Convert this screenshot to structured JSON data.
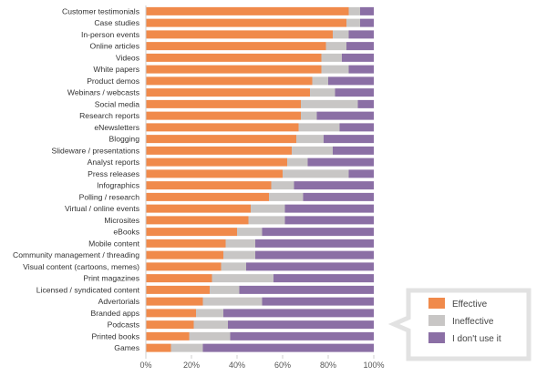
{
  "chart_data": {
    "type": "bar",
    "orientation": "horizontal",
    "stacked": true,
    "categories": [
      "Customer testimonials",
      "Case studies",
      "In-person events",
      "Online articles",
      "Videos",
      "White papers",
      "Product demos",
      "Webinars / webcasts",
      "Social media",
      "Research reports",
      "eNewsletters",
      "Blogging",
      "Slideware / presentations",
      "Analyst reports",
      "Press releases",
      "Infographics",
      "Polling / research",
      "Virtual / online events",
      "Microsites",
      "eBooks",
      "Mobile content",
      "Community management / threading",
      "Visual content (cartoons, memes)",
      "Print magazines",
      "Licensed / syndicated content",
      "Advertorials",
      "Branded apps",
      "Podcasts",
      "Printed books",
      "Games"
    ],
    "series": [
      {
        "name": "Effective",
        "color": "#f08a4b",
        "values": [
          89,
          88,
          82,
          79,
          77,
          77,
          73,
          72,
          68,
          68,
          67,
          66,
          64,
          62,
          60,
          55,
          54,
          46,
          45,
          40,
          35,
          34,
          33,
          29,
          28,
          25,
          22,
          21,
          19,
          11
        ]
      },
      {
        "name": "Ineffective",
        "color": "#c8c6c5",
        "values": [
          5,
          6,
          7,
          9,
          9,
          12,
          7,
          11,
          25,
          7,
          18,
          12,
          18,
          9,
          29,
          10,
          15,
          15,
          16,
          11,
          13,
          14,
          11,
          27,
          13,
          26,
          12,
          15,
          18,
          14
        ]
      },
      {
        "name": "I don't use it",
        "color": "#8b6fa5",
        "values": [
          6,
          6,
          11,
          12,
          14,
          11,
          20,
          17,
          7,
          25,
          15,
          22,
          18,
          29,
          11,
          35,
          31,
          39,
          39,
          49,
          52,
          52,
          56,
          44,
          59,
          49,
          66,
          64,
          63,
          75
        ]
      }
    ],
    "x_ticks": [
      "0%",
      "20%",
      "40%",
      "60%",
      "80%",
      "100%"
    ],
    "xlim": [
      0,
      100
    ],
    "grid": false,
    "legend_position": "bottom-right"
  }
}
